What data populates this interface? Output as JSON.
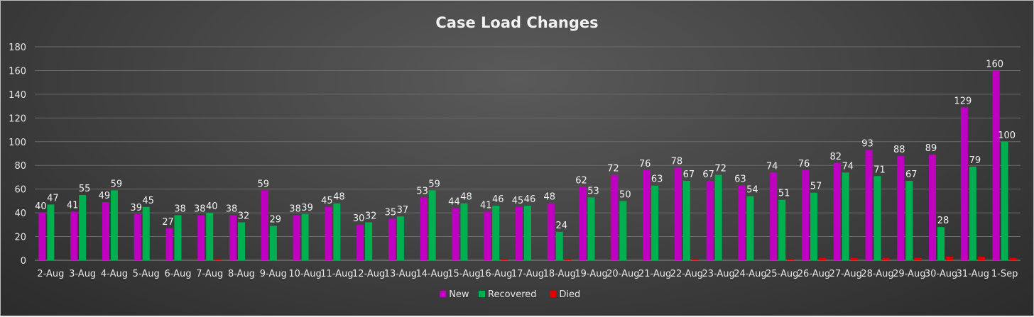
{
  "chart_data": {
    "type": "bar",
    "title": "Case Load Changes",
    "xlabel": "",
    "ylabel": "",
    "ylim": [
      0,
      180
    ],
    "yticks": [
      0,
      20,
      40,
      60,
      80,
      100,
      120,
      140,
      160,
      180
    ],
    "grid": true,
    "legend_position": "bottom",
    "categories": [
      "2-Aug",
      "3-Aug",
      "4-Aug",
      "5-Aug",
      "6-Aug",
      "7-Aug",
      "8-Aug",
      "9-Aug",
      "10-Aug",
      "11-Aug",
      "12-Aug",
      "13-Aug",
      "14-Aug",
      "15-Aug",
      "16-Aug",
      "17-Aug",
      "18-Aug",
      "19-Aug",
      "20-Aug",
      "21-Aug",
      "22-Aug",
      "23-Aug",
      "24-Aug",
      "25-Aug",
      "26-Aug",
      "27-Aug",
      "28-Aug",
      "29-Aug",
      "30-Aug",
      "31-Aug",
      "1-Sep"
    ],
    "series": [
      {
        "name": "New",
        "color": "#c000c0",
        "labels_shown": true,
        "values": [
          40,
          41,
          49,
          39,
          27,
          38,
          38,
          59,
          38,
          45,
          30,
          35,
          53,
          44,
          41,
          45,
          48,
          62,
          72,
          76,
          78,
          67,
          63,
          74,
          76,
          82,
          93,
          88,
          89,
          129,
          160
        ]
      },
      {
        "name": "Recovered",
        "color": "#00b050",
        "labels_shown": true,
        "values": [
          47,
          55,
          59,
          45,
          38,
          40,
          32,
          29,
          39,
          48,
          32,
          37,
          59,
          48,
          46,
          46,
          24,
          53,
          50,
          63,
          67,
          72,
          54,
          51,
          57,
          74,
          71,
          67,
          28,
          79,
          100
        ]
      },
      {
        "name": "Died",
        "color": "#e00000",
        "labels_shown": false,
        "values": [
          0,
          0,
          0,
          0,
          0,
          1,
          0,
          0,
          0,
          0,
          0,
          0,
          0,
          0,
          1,
          0,
          1,
          0,
          0,
          0,
          1,
          0,
          0,
          1,
          2,
          2,
          2,
          2,
          3,
          3,
          2
        ]
      }
    ]
  }
}
